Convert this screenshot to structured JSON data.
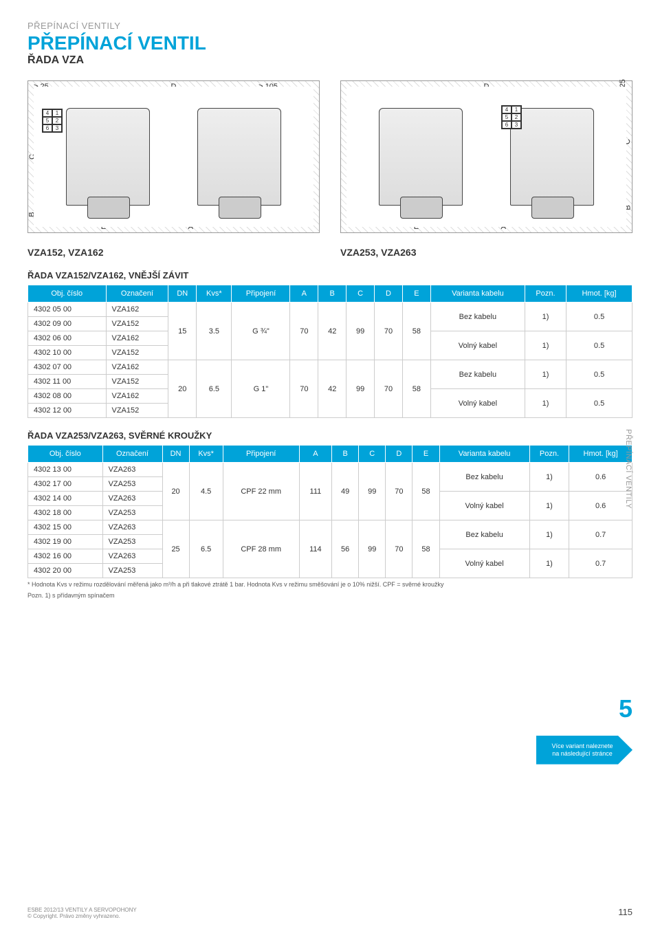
{
  "header": {
    "category": "PŘEPÍNACÍ VENTILY",
    "title": "PŘEPÍNACÍ VENTIL",
    "subtitle": "ŘADA VZA"
  },
  "diagrams": {
    "left_caption": "VZA152, VZA162",
    "right_caption": "VZA253, VZA263",
    "labels": {
      "gt25": "> 25",
      "gt105": "> 105",
      "D": "D",
      "C": "C",
      "E": "E",
      "A": "A",
      "B": "B"
    },
    "keypad": [
      [
        "4",
        "1"
      ],
      [
        "5",
        "2"
      ],
      [
        "6",
        "3"
      ]
    ]
  },
  "table1": {
    "section_title": "ŘADA VZA152/VZA162, VNĚJŠÍ ZÁVIT",
    "columns": [
      "Obj. číslo",
      "Označení",
      "DN",
      "Kvs*",
      "Připojení",
      "A",
      "B",
      "C",
      "D",
      "E",
      "Varianta kabelu",
      "Pozn.",
      "Hmot. [kg]"
    ],
    "groups": [
      {
        "dn": "15",
        "kvs": "3.5",
        "conn": "G ¾\"",
        "A": "70",
        "B": "42",
        "C": "99",
        "D": "70",
        "E": "58",
        "rows": [
          {
            "obj": "4302 05 00",
            "oz": "VZA162",
            "var": "Bez kabelu",
            "pozn": "1)",
            "hm": "0.5"
          },
          {
            "obj": "4302 09 00",
            "oz": "VZA152"
          },
          {
            "obj": "4302 06 00",
            "oz": "VZA162",
            "var": "Volný kabel",
            "pozn": "1)",
            "hm": "0.5"
          },
          {
            "obj": "4302 10 00",
            "oz": "VZA152"
          }
        ]
      },
      {
        "dn": "20",
        "kvs": "6.5",
        "conn": "G 1\"",
        "A": "70",
        "B": "42",
        "C": "99",
        "D": "70",
        "E": "58",
        "rows": [
          {
            "obj": "4302 07 00",
            "oz": "VZA162",
            "var": "Bez kabelu",
            "pozn": "1)",
            "hm": "0.5"
          },
          {
            "obj": "4302 11 00",
            "oz": "VZA152"
          },
          {
            "obj": "4302 08 00",
            "oz": "VZA162",
            "var": "Volný kabel",
            "pozn": "1)",
            "hm": "0.5"
          },
          {
            "obj": "4302 12 00",
            "oz": "VZA152"
          }
        ]
      }
    ]
  },
  "table2": {
    "section_title": "ŘADA VZA253/VZA263, SVĚRNÉ KROUŽKY",
    "columns": [
      "Obj. číslo",
      "Označení",
      "DN",
      "Kvs*",
      "Připojení",
      "A",
      "B",
      "C",
      "D",
      "E",
      "Varianta kabelu",
      "Pozn.",
      "Hmot. [kg]"
    ],
    "groups": [
      {
        "dn": "20",
        "kvs": "4.5",
        "conn": "CPF 22 mm",
        "A": "111",
        "B": "49",
        "C": "99",
        "D": "70",
        "E": "58",
        "rows": [
          {
            "obj": "4302 13 00",
            "oz": "VZA263",
            "var": "Bez kabelu",
            "pozn": "1)",
            "hm": "0.6"
          },
          {
            "obj": "4302 17 00",
            "oz": "VZA253"
          },
          {
            "obj": "4302 14 00",
            "oz": "VZA263",
            "var": "Volný kabel",
            "pozn": "1)",
            "hm": "0.6"
          },
          {
            "obj": "4302 18 00",
            "oz": "VZA253"
          }
        ]
      },
      {
        "dn": "25",
        "kvs": "6.5",
        "conn": "CPF 28 mm",
        "A": "114",
        "B": "56",
        "C": "99",
        "D": "70",
        "E": "58",
        "rows": [
          {
            "obj": "4302 15 00",
            "oz": "VZA263",
            "var": "Bez kabelu",
            "pozn": "1)",
            "hm": "0.7"
          },
          {
            "obj": "4302 19 00",
            "oz": "VZA253"
          },
          {
            "obj": "4302 16 00",
            "oz": "VZA263",
            "var": "Volný kabel",
            "pozn": "1)",
            "hm": "0.7"
          },
          {
            "obj": "4302 20 00",
            "oz": "VZA253"
          }
        ]
      }
    ],
    "footnote1": "* Hodnota Kvs v režimu rozdělování měřená jako m³/h a při tlakové ztrátě 1 bar. Hodnota Kvs v režimu směšování je o 10% nižší.  CPF = svěrné kroužky",
    "footnote2": "Pozn. 1) s přídavným spínačem"
  },
  "side": {
    "tab": "PŘEPÍNACÍ VENTILY",
    "num": "5",
    "arrow_line1": "Více variant naleznete",
    "arrow_line2": "na následující stránce"
  },
  "footer": {
    "left1": "ESBE 2012/13 VENTILY A SERVOPOHONY",
    "left2": "© Copyright. Právo změny vyhrazeno.",
    "page": "115"
  },
  "colors": {
    "brand": "#00a3d9",
    "muted": "#999999"
  }
}
